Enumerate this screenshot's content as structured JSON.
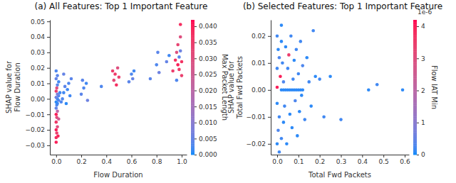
{
  "chart_data": [
    {
      "type": "scatter",
      "title": "(a) All Features: Top 1 Important Feature",
      "x_label": "Flow Duration",
      "y_label": [
        "SHAP value for",
        "Flow Duration"
      ],
      "xlim": [
        -0.05,
        1.04
      ],
      "xticks": [
        {
          "value": 0,
          "label": "0.0"
        },
        {
          "value": 0.2,
          "label": "0.2"
        },
        {
          "value": 0.4,
          "label": "0.4"
        },
        {
          "value": 0.6,
          "label": "0.6"
        },
        {
          "value": 0.8,
          "label": "0.8"
        },
        {
          "value": 1,
          "label": "1.0"
        }
      ],
      "ylim": [
        -0.036,
        0.051
      ],
      "yticks": [
        {
          "value": -0.03,
          "label": "−0.03"
        },
        {
          "value": -0.02,
          "label": "−0.02"
        },
        {
          "value": -0.01,
          "label": "−0.01"
        },
        {
          "value": 0,
          "label": "0.00"
        },
        {
          "value": 0.01,
          "label": "0.01"
        },
        {
          "value": 0.02,
          "label": "0.02"
        },
        {
          "value": 0.03,
          "label": "0.03"
        },
        {
          "value": 0.04,
          "label": "0.04"
        },
        {
          "value": 0.05,
          "label": "0.05"
        }
      ],
      "colorbar": {
        "label": "Max Packet Length",
        "range": [
          0,
          0.042
        ],
        "ticks": [
          {
            "value": 0,
            "label": "0.000"
          },
          {
            "value": 0.005,
            "label": "0.005"
          },
          {
            "value": 0.01,
            "label": "0.010"
          },
          {
            "value": 0.015,
            "label": "0.015"
          },
          {
            "value": 0.02,
            "label": "0.020"
          },
          {
            "value": 0.025,
            "label": "0.025"
          },
          {
            "value": 0.03,
            "label": "0.030"
          },
          {
            "value": 0.035,
            "label": "0.035"
          },
          {
            "value": 0.04,
            "label": "0.040"
          }
        ]
      },
      "x": [
        0,
        0,
        0.005,
        0,
        0.01,
        0,
        0.005,
        0,
        0.01,
        0,
        0.005,
        0.01,
        0,
        0.02,
        0.01,
        0,
        0.02,
        0.01,
        0,
        0.005,
        0.01,
        0.02,
        0,
        0.01,
        0,
        0.03,
        0.04,
        0.02,
        0.015,
        0.05,
        0.06,
        0.07,
        0.08,
        0.09,
        0.1,
        0.11,
        0.12,
        0.06,
        0.2,
        0.22,
        0.24,
        0.25,
        0.21,
        0.36,
        0.45,
        0.46,
        0.47,
        0.49,
        0.5,
        0.48,
        0.58,
        0.6,
        0.62,
        0.61,
        0.75,
        0.8,
        0.81,
        0.82,
        0.88,
        0.9,
        0.93,
        0.95,
        0.96,
        0.97,
        0.97,
        0.98,
        0.98,
        0.99,
        0.99,
        1,
        1,
        0.96,
        0.99
      ],
      "y": [
        -0.028,
        -0.025,
        -0.022,
        -0.02,
        -0.018,
        -0.015,
        -0.012,
        -0.01,
        -0.008,
        -0.006,
        -0.004,
        -0.003,
        -0.002,
        -0.001,
        0,
        0.001,
        0.002,
        0.003,
        0.005,
        0.007,
        0.009,
        0.011,
        0.013,
        0.015,
        0.018,
        0.004,
        -0.002,
        -0.013,
        -0.024,
        0,
        0.004,
        0.008,
        -0.003,
        0.006,
        0.01,
        0.002,
        0.013,
        0.016,
        0.003,
        0.007,
        0.01,
        -0.001,
        0.012,
        0.008,
        0.018,
        0.012,
        0.016,
        0.02,
        0.014,
        0.009,
        0.011,
        0.016,
        0.018,
        0.013,
        0.013,
        0.022,
        0.03,
        0.017,
        0.024,
        0.028,
        0.018,
        0.025,
        0.03,
        0.022,
        0.035,
        0.019,
        0.027,
        0.048,
        0.031,
        0.024,
        0.015,
        0.012,
        0.04
      ],
      "color_values": [
        0.04,
        0.038,
        0.035,
        0.04,
        0.03,
        0.036,
        0.032,
        0.04,
        0.02,
        0.005,
        0.003,
        0.002,
        0.001,
        0.004,
        0.002,
        0.006,
        0.003,
        0.008,
        0.035,
        0.03,
        0.004,
        0.002,
        0.005,
        0.004,
        0.003,
        0.002,
        0.003,
        0.025,
        0.039,
        0.003,
        0.002,
        0.004,
        0.001,
        0.002,
        0.003,
        0.002,
        0.004,
        0.005,
        0.004,
        0.003,
        0.002,
        0.006,
        0.004,
        0.003,
        0.035,
        0.032,
        0.036,
        0.03,
        0.034,
        0.038,
        0.004,
        0.003,
        0.002,
        0.005,
        0.004,
        0.003,
        0.004,
        0.006,
        0.005,
        0.002,
        0.035,
        0.038,
        0.03,
        0.04,
        0.033,
        0.036,
        0.004,
        0.038,
        0.006,
        0.037,
        0.034,
        0.003,
        0.03
      ]
    },
    {
      "type": "scatter",
      "title": "(b) Selected Features: Top 1 Important Feature",
      "x_label": "Total Fwd Packets",
      "y_label": [
        "SHAP value for",
        "Total Fwd Packets"
      ],
      "xlim": [
        -0.03,
        0.62
      ],
      "xticks": [
        {
          "value": 0,
          "label": "0.0"
        },
        {
          "value": 0.1,
          "label": "0.1"
        },
        {
          "value": 0.2,
          "label": "0.2"
        },
        {
          "value": 0.3,
          "label": "0.3"
        },
        {
          "value": 0.4,
          "label": "0.4"
        },
        {
          "value": 0.5,
          "label": "0.5"
        },
        {
          "value": 0.6,
          "label": "0.6"
        }
      ],
      "ylim": [
        -0.024,
        0.026
      ],
      "yticks": [
        {
          "value": -0.02,
          "label": "−0.02"
        },
        {
          "value": -0.01,
          "label": "−0.01"
        },
        {
          "value": 0,
          "label": "0.00"
        },
        {
          "value": 0.01,
          "label": "0.01"
        },
        {
          "value": 0.02,
          "label": "0.02"
        }
      ],
      "colorbar": {
        "label": "Flow IAT Min",
        "range": [
          0,
          4.2e-06
        ],
        "offset_text": "1e-6",
        "ticks": [
          {
            "value": 0,
            "label": "0"
          },
          {
            "value": 1e-06,
            "label": "1"
          },
          {
            "value": 2e-06,
            "label": "2"
          },
          {
            "value": 3e-06,
            "label": "3"
          },
          {
            "value": 4e-06,
            "label": "4"
          }
        ]
      },
      "x": [
        0,
        0.005,
        0.01,
        0,
        0.02,
        0.015,
        0,
        0.01,
        0.005,
        0,
        0.02,
        0.03,
        0.025,
        0.03,
        0.04,
        0.035,
        0.045,
        0.05,
        0.055,
        0.06,
        0.065,
        0.07,
        0.075,
        0.08,
        0.085,
        0.09,
        0.095,
        0.1,
        0.105,
        0.11,
        0.115,
        0.12,
        0.13,
        0.14,
        0.15,
        0.16,
        0.17,
        0.18,
        0.02,
        0.03,
        0.04,
        0.05,
        0.06,
        0.07,
        0.08,
        0.09,
        0.1,
        0.11,
        0.12,
        0.22,
        0.25,
        0.3,
        0.43,
        0.47,
        0.59,
        0.2,
        0.02,
        0.01,
        0
      ],
      "y": [
        0.02,
        0.015,
        0.012,
        0.008,
        0.018,
        0.005,
        -0.005,
        -0.01,
        -0.015,
        -0.02,
        -0.018,
        -0.012,
        0.01,
        0.003,
        0.016,
        -0.006,
        -0.02,
        0.008,
        0.013,
        -0.009,
        0.02,
        -0.014,
        0.004,
        0.011,
        -0.004,
        0.015,
        -0.017,
        0.006,
        -0.008,
        0.018,
        -0.002,
        0.009,
        -0.011,
        0.012,
        0.003,
        -0.006,
        0.022,
        0.005,
        0,
        0,
        0,
        0,
        0,
        0,
        0,
        0,
        0,
        0,
        0,
        -0.01,
        0.005,
        -0.011,
        0,
        0.002,
        0,
        0.004,
        0.024,
        -0.023,
        0.001
      ],
      "color_values": [
        2e-07,
        1e-07,
        3e-07,
        2e-07,
        1e-07,
        4e-06,
        1e-07,
        2e-07,
        3e-07,
        1e-07,
        2e-07,
        1e-07,
        2e-07,
        3e-07,
        1e-07,
        2e-07,
        1e-07,
        2e-07,
        3.5e-06,
        1e-07,
        2e-07,
        1e-07,
        2e-07,
        1e-07,
        3e-07,
        2e-07,
        1e-07,
        2e-07,
        1e-07,
        2e-07,
        1e-07,
        3e-07,
        2e-07,
        1e-07,
        2e-07,
        1e-07,
        2e-07,
        1e-07,
        1e-07,
        1e-07,
        1e-07,
        1e-07,
        1e-07,
        1e-07,
        1e-07,
        1e-07,
        1e-07,
        1e-07,
        1e-07,
        2e-07,
        1e-07,
        2e-07,
        1e-07,
        2e-07,
        1e-07,
        2e-07,
        1e-07,
        2e-07,
        4e-06
      ]
    }
  ]
}
